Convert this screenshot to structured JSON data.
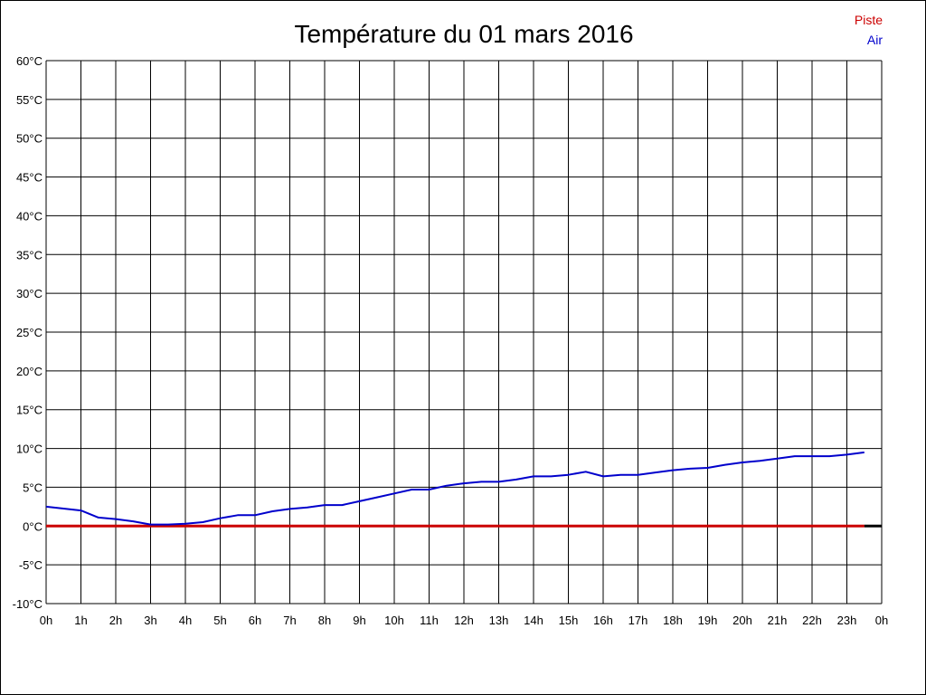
{
  "chart_data": {
    "type": "line",
    "title": "Température du 01 mars 2016",
    "xlabel": "",
    "ylabel": "",
    "x_tick_labels": [
      "0h",
      "1h",
      "2h",
      "3h",
      "4h",
      "5h",
      "6h",
      "7h",
      "8h",
      "9h",
      "10h",
      "11h",
      "12h",
      "13h",
      "14h",
      "15h",
      "16h",
      "17h",
      "18h",
      "19h",
      "20h",
      "21h",
      "22h",
      "23h",
      "0h"
    ],
    "y_tick_labels": [
      "60°C",
      "55°C",
      "50°C",
      "45°C",
      "40°C",
      "35°C",
      "30°C",
      "25°C",
      "20°C",
      "15°C",
      "10°C",
      "5°C",
      "0°C",
      "-5°C",
      "-10°C"
    ],
    "ylim": [
      -10,
      60
    ],
    "xlim": [
      0,
      24
    ],
    "grid": true,
    "legend_position": "top-right",
    "series": [
      {
        "name": "Piste",
        "color": "#cc0000",
        "x": [
          0,
          23.5
        ],
        "y": [
          0,
          0
        ]
      },
      {
        "name": "Air",
        "color": "#0000cc",
        "x": [
          0,
          1,
          1.5,
          2,
          2.5,
          3,
          3.5,
          4,
          4.5,
          5,
          5.5,
          6,
          6.5,
          7,
          7.5,
          8,
          8.5,
          9,
          9.5,
          10,
          10.5,
          11,
          11.5,
          12,
          12.5,
          13,
          13.5,
          14,
          14.5,
          15,
          15.5,
          16,
          16.5,
          17,
          17.5,
          18,
          18.5,
          19,
          19.5,
          20,
          20.5,
          21,
          21.5,
          22,
          22.5,
          23,
          23.5
        ],
        "y": [
          2.5,
          2.0,
          1.1,
          0.9,
          0.6,
          0.2,
          0.2,
          0.3,
          0.5,
          1.0,
          1.4,
          1.4,
          1.9,
          2.2,
          2.4,
          2.7,
          2.7,
          3.2,
          3.7,
          4.2,
          4.7,
          4.7,
          5.2,
          5.5,
          5.7,
          5.7,
          6.0,
          6.4,
          6.4,
          6.6,
          7.0,
          6.4,
          6.6,
          6.6,
          6.9,
          7.2,
          7.4,
          7.5,
          7.9,
          8.2,
          8.4,
          8.7,
          9.0,
          9.0,
          9.0,
          9.2,
          9.5
        ]
      }
    ]
  }
}
